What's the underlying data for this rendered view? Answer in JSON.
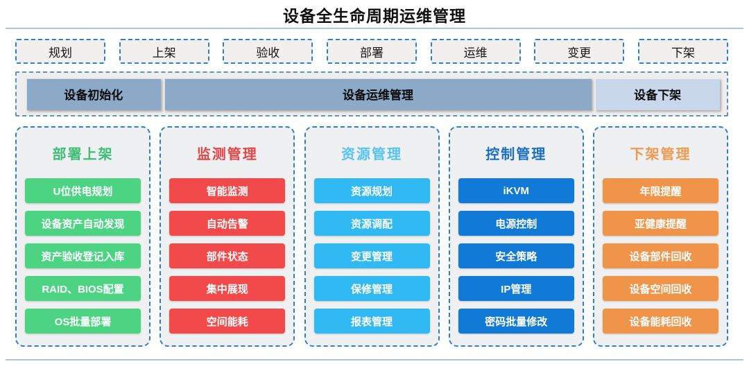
{
  "title": "设备全生命周期运维管理",
  "lifecycle_stages": [
    "规划",
    "上架",
    "验收",
    "部署",
    "运维",
    "变更",
    "下架"
  ],
  "phase_bar": {
    "primary_color": "#8da9c8",
    "light_color": "#c9d7ea",
    "items": [
      {
        "label": "设备初始化",
        "style": "primary"
      },
      {
        "label": "设备运维管理",
        "style": "primary"
      },
      {
        "label": "设备下架",
        "style": "light"
      }
    ]
  },
  "columns": [
    {
      "title": "部署上架",
      "title_color": "#3dbd75",
      "item_color": "#4cd483",
      "items": [
        "U位供电规划",
        "设备资产自动发现",
        "资产验收登记入库",
        "RAID、BIOS配置",
        "OS批量部署"
      ]
    },
    {
      "title": "监测管理",
      "title_color": "#e64545",
      "item_color": "#f24a4a",
      "items": [
        "智能监测",
        "自动告警",
        "部件状态",
        "集中展现",
        "空间能耗"
      ]
    },
    {
      "title": "资源管理",
      "title_color": "#55c4f2",
      "item_color": "#30b9f2",
      "items": [
        "资源规划",
        "资源调配",
        "变更管理",
        "保修管理",
        "报表管理"
      ]
    },
    {
      "title": "控制管理",
      "title_color": "#1a6fc4",
      "item_color": "#1179d6",
      "items": [
        "iKVM",
        "电源控制",
        "安全策略",
        "IP管理",
        "密码批量修改"
      ]
    },
    {
      "title": "下架管理",
      "title_color": "#f09a50",
      "item_color": "#f0944a",
      "items": [
        "年限提醒",
        "亚健康提醒",
        "设备部件回收",
        "设备空间回收",
        "设备能耗回收"
      ]
    }
  ],
  "colors": {
    "border_dash": "#2e80c0",
    "panel_bg": "#eef0f1",
    "divider_line": "#9db9cc"
  }
}
